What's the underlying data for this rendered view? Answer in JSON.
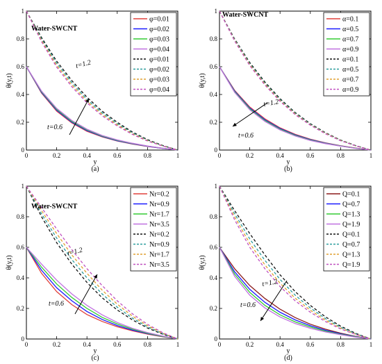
{
  "figure": {
    "panel_labels": [
      "(a)",
      "(b)",
      "(c)",
      "(d)"
    ]
  },
  "chart_data": [
    {
      "type": "line",
      "panel_label": "(a)",
      "annotation": "Water-SWCNT",
      "xlabel": "y",
      "ylabel": "θ(y,t)",
      "xlim": [
        0,
        1
      ],
      "ylim": [
        0,
        1
      ],
      "xticks": [
        "0",
        "0.2",
        "0.4",
        "0.6",
        "0.8",
        "1"
      ],
      "yticks": [
        "0",
        "0.2",
        "0.4",
        "0.6",
        "0.8",
        "1"
      ],
      "time_labels": [
        "t=1.2",
        "t=0.6"
      ],
      "arrow_direction": "up-right",
      "legend_position": "top-right",
      "x": [
        0,
        0.1,
        0.2,
        0.3,
        0.4,
        0.5,
        0.6,
        0.7,
        0.8,
        0.9,
        1.0
      ],
      "series": [
        {
          "name": "φ=0.01",
          "style": "solid",
          "color": "#e0403a",
          "values": [
            0.6,
            0.41,
            0.28,
            0.195,
            0.135,
            0.095,
            0.065,
            0.043,
            0.026,
            0.012,
            0
          ]
        },
        {
          "name": "φ=0.02",
          "style": "solid",
          "color": "#1a1aff",
          "values": [
            0.6,
            0.415,
            0.287,
            0.2,
            0.14,
            0.098,
            0.067,
            0.045,
            0.027,
            0.012,
            0
          ]
        },
        {
          "name": "φ=0.03",
          "style": "solid",
          "color": "#33cc33",
          "values": [
            0.6,
            0.42,
            0.293,
            0.206,
            0.145,
            0.101,
            0.07,
            0.047,
            0.028,
            0.013,
            0
          ]
        },
        {
          "name": "φ=0.04",
          "style": "solid",
          "color": "#c070e0",
          "values": [
            0.6,
            0.425,
            0.3,
            0.213,
            0.15,
            0.105,
            0.073,
            0.049,
            0.029,
            0.013,
            0
          ]
        },
        {
          "name": "φ=0.01",
          "style": "dashed",
          "color": "#111111",
          "values": [
            1.0,
            0.81,
            0.64,
            0.5,
            0.38,
            0.28,
            0.2,
            0.13,
            0.075,
            0.033,
            0
          ]
        },
        {
          "name": "φ=0.02",
          "style": "dashed",
          "color": "#2a9d9d",
          "values": [
            1.0,
            0.8,
            0.625,
            0.485,
            0.365,
            0.268,
            0.19,
            0.124,
            0.071,
            0.031,
            0
          ]
        },
        {
          "name": "φ=0.03",
          "style": "dashed",
          "color": "#e0a030",
          "values": [
            1.0,
            0.79,
            0.61,
            0.47,
            0.352,
            0.257,
            0.182,
            0.118,
            0.068,
            0.03,
            0
          ]
        },
        {
          "name": "φ=0.04",
          "style": "dashed",
          "color": "#c050c0",
          "values": [
            1.0,
            0.78,
            0.597,
            0.456,
            0.34,
            0.247,
            0.174,
            0.113,
            0.065,
            0.029,
            0
          ]
        }
      ]
    },
    {
      "type": "line",
      "panel_label": "(b)",
      "annotation": "Water-SWCNT",
      "xlabel": "y",
      "ylabel": "θ(y,t)",
      "xlim": [
        0,
        1
      ],
      "ylim": [
        0,
        1
      ],
      "xticks": [
        "0",
        "0.2",
        "0.4",
        "0.6",
        "0.8",
        "1"
      ],
      "yticks": [
        "0",
        "0.2",
        "0.4",
        "0.6",
        "0.8",
        "1"
      ],
      "time_labels": [
        "t=1.2",
        "t=0.6"
      ],
      "arrow_direction": "down-left",
      "legend_position": "top-right",
      "x": [
        0,
        0.1,
        0.2,
        0.3,
        0.4,
        0.5,
        0.6,
        0.7,
        0.8,
        0.9,
        1.0
      ],
      "series": [
        {
          "name": "α=0.1",
          "style": "solid",
          "color": "#e0403a",
          "values": [
            0.6,
            0.43,
            0.31,
            0.225,
            0.16,
            0.113,
            0.078,
            0.052,
            0.031,
            0.014,
            0
          ]
        },
        {
          "name": "α=0.5",
          "style": "solid",
          "color": "#1a1aff",
          "values": [
            0.6,
            0.425,
            0.303,
            0.218,
            0.155,
            0.109,
            0.075,
            0.05,
            0.03,
            0.013,
            0
          ]
        },
        {
          "name": "α=0.7",
          "style": "solid",
          "color": "#33cc33",
          "values": [
            0.6,
            0.42,
            0.297,
            0.212,
            0.15,
            0.105,
            0.072,
            0.048,
            0.029,
            0.013,
            0
          ]
        },
        {
          "name": "α=0.9",
          "style": "solid",
          "color": "#c070e0",
          "values": [
            0.6,
            0.415,
            0.29,
            0.206,
            0.145,
            0.101,
            0.069,
            0.046,
            0.028,
            0.012,
            0
          ]
        },
        {
          "name": "α=0.1",
          "style": "dashed",
          "color": "#111111",
          "values": [
            1.0,
            0.8,
            0.63,
            0.49,
            0.37,
            0.27,
            0.19,
            0.125,
            0.072,
            0.032,
            0
          ]
        },
        {
          "name": "α=0.5",
          "style": "dashed",
          "color": "#2a9d9d",
          "values": [
            1.0,
            0.795,
            0.622,
            0.482,
            0.363,
            0.265,
            0.186,
            0.122,
            0.07,
            0.031,
            0
          ]
        },
        {
          "name": "α=0.7",
          "style": "dashed",
          "color": "#e0a030",
          "values": [
            1.0,
            0.79,
            0.615,
            0.475,
            0.357,
            0.26,
            0.182,
            0.12,
            0.069,
            0.03,
            0
          ]
        },
        {
          "name": "α=0.9",
          "style": "dashed",
          "color": "#c050c0",
          "values": [
            1.0,
            0.785,
            0.608,
            0.468,
            0.351,
            0.255,
            0.179,
            0.117,
            0.067,
            0.03,
            0
          ]
        }
      ]
    },
    {
      "type": "line",
      "panel_label": "(c)",
      "annotation": "Water-SWCNT",
      "xlabel": "y",
      "ylabel": "θ(y,t)",
      "xlim": [
        0,
        1
      ],
      "ylim": [
        0,
        1
      ],
      "xticks": [
        "0",
        "0.2",
        "0.4",
        "0.6",
        "0.8",
        "1"
      ],
      "yticks": [
        "0",
        "0.2",
        "0.4",
        "0.6",
        "0.8",
        "1"
      ],
      "time_labels": [
        "t=1.2",
        "t=0.6"
      ],
      "arrow_direction": "up-right",
      "legend_position": "top-right",
      "x": [
        0,
        0.1,
        0.2,
        0.3,
        0.4,
        0.5,
        0.6,
        0.7,
        0.8,
        0.9,
        1.0
      ],
      "series": [
        {
          "name": "Nr=0.2",
          "style": "solid",
          "color": "#e0403a",
          "values": [
            0.6,
            0.43,
            0.31,
            0.225,
            0.16,
            0.115,
            0.08,
            0.053,
            0.032,
            0.014,
            0
          ]
        },
        {
          "name": "Nr=0.9",
          "style": "solid",
          "color": "#1a1aff",
          "values": [
            0.6,
            0.45,
            0.335,
            0.25,
            0.18,
            0.128,
            0.088,
            0.058,
            0.035,
            0.016,
            0
          ]
        },
        {
          "name": "Nr=1.7",
          "style": "solid",
          "color": "#33cc33",
          "values": [
            0.6,
            0.47,
            0.36,
            0.272,
            0.2,
            0.142,
            0.098,
            0.064,
            0.038,
            0.017,
            0
          ]
        },
        {
          "name": "Nr=3.5",
          "style": "solid",
          "color": "#c070e0",
          "values": [
            0.6,
            0.49,
            0.385,
            0.295,
            0.22,
            0.158,
            0.108,
            0.07,
            0.042,
            0.019,
            0
          ]
        },
        {
          "name": "Nr=0.2",
          "style": "dashed",
          "color": "#111111",
          "values": [
            1.0,
            0.8,
            0.63,
            0.49,
            0.37,
            0.27,
            0.19,
            0.125,
            0.072,
            0.032,
            0
          ]
        },
        {
          "name": "Nr=0.9",
          "style": "dashed",
          "color": "#2a9d9d",
          "values": [
            1.0,
            0.82,
            0.66,
            0.52,
            0.4,
            0.295,
            0.208,
            0.137,
            0.079,
            0.035,
            0
          ]
        },
        {
          "name": "Nr=1.7",
          "style": "dashed",
          "color": "#e0a030",
          "values": [
            1.0,
            0.84,
            0.69,
            0.55,
            0.43,
            0.32,
            0.228,
            0.15,
            0.087,
            0.038,
            0
          ]
        },
        {
          "name": "Nr=3.5",
          "style": "dashed",
          "color": "#c050c0",
          "values": [
            1.0,
            0.86,
            0.72,
            0.585,
            0.46,
            0.35,
            0.25,
            0.165,
            0.096,
            0.042,
            0
          ]
        }
      ]
    },
    {
      "type": "line",
      "panel_label": "(d)",
      "annotation": "",
      "xlabel": "y",
      "ylabel": "θ(y,t)",
      "xlim": [
        0,
        1
      ],
      "ylim": [
        0,
        1
      ],
      "xticks": [
        "0",
        "0.2",
        "0.4",
        "0.6",
        "0.8",
        "1"
      ],
      "yticks": [
        "0",
        "0.2",
        "0.4",
        "0.6",
        "0.8",
        "1"
      ],
      "time_labels": [
        "t=1.2",
        "t=0.6"
      ],
      "arrow_direction": "down-left",
      "legend_position": "top-right",
      "x": [
        0,
        0.1,
        0.2,
        0.3,
        0.4,
        0.5,
        0.6,
        0.7,
        0.8,
        0.9,
        1.0
      ],
      "series": [
        {
          "name": "Q=0.1",
          "style": "solid",
          "color": "#8b1a1a",
          "values": [
            0.6,
            0.46,
            0.35,
            0.265,
            0.195,
            0.14,
            0.097,
            0.064,
            0.038,
            0.017,
            0
          ]
        },
        {
          "name": "Q=0.7",
          "style": "solid",
          "color": "#1a1aff",
          "values": [
            0.6,
            0.44,
            0.325,
            0.24,
            0.175,
            0.125,
            0.087,
            0.057,
            0.034,
            0.015,
            0
          ]
        },
        {
          "name": "Q=1.3",
          "style": "solid",
          "color": "#33cc33",
          "values": [
            0.6,
            0.425,
            0.305,
            0.22,
            0.158,
            0.112,
            0.078,
            0.051,
            0.031,
            0.014,
            0
          ]
        },
        {
          "name": "Q=1.9",
          "style": "solid",
          "color": "#c070e0",
          "values": [
            0.6,
            0.41,
            0.287,
            0.203,
            0.144,
            0.101,
            0.07,
            0.046,
            0.028,
            0.012,
            0
          ]
        },
        {
          "name": "Q=0.1",
          "style": "dashed",
          "color": "#111111",
          "values": [
            1.0,
            0.84,
            0.69,
            0.55,
            0.42,
            0.31,
            0.22,
            0.145,
            0.084,
            0.037,
            0
          ]
        },
        {
          "name": "Q=0.7",
          "style": "dashed",
          "color": "#2a9d9d",
          "values": [
            1.0,
            0.82,
            0.655,
            0.515,
            0.39,
            0.287,
            0.203,
            0.133,
            0.077,
            0.034,
            0
          ]
        },
        {
          "name": "Q=1.3",
          "style": "dashed",
          "color": "#e0a030",
          "values": [
            1.0,
            0.8,
            0.625,
            0.485,
            0.365,
            0.267,
            0.188,
            0.123,
            0.071,
            0.031,
            0
          ]
        },
        {
          "name": "Q=1.9",
          "style": "dashed",
          "color": "#c050c0",
          "values": [
            1.0,
            0.78,
            0.6,
            0.46,
            0.343,
            0.25,
            0.175,
            0.114,
            0.066,
            0.029,
            0
          ]
        }
      ]
    }
  ]
}
